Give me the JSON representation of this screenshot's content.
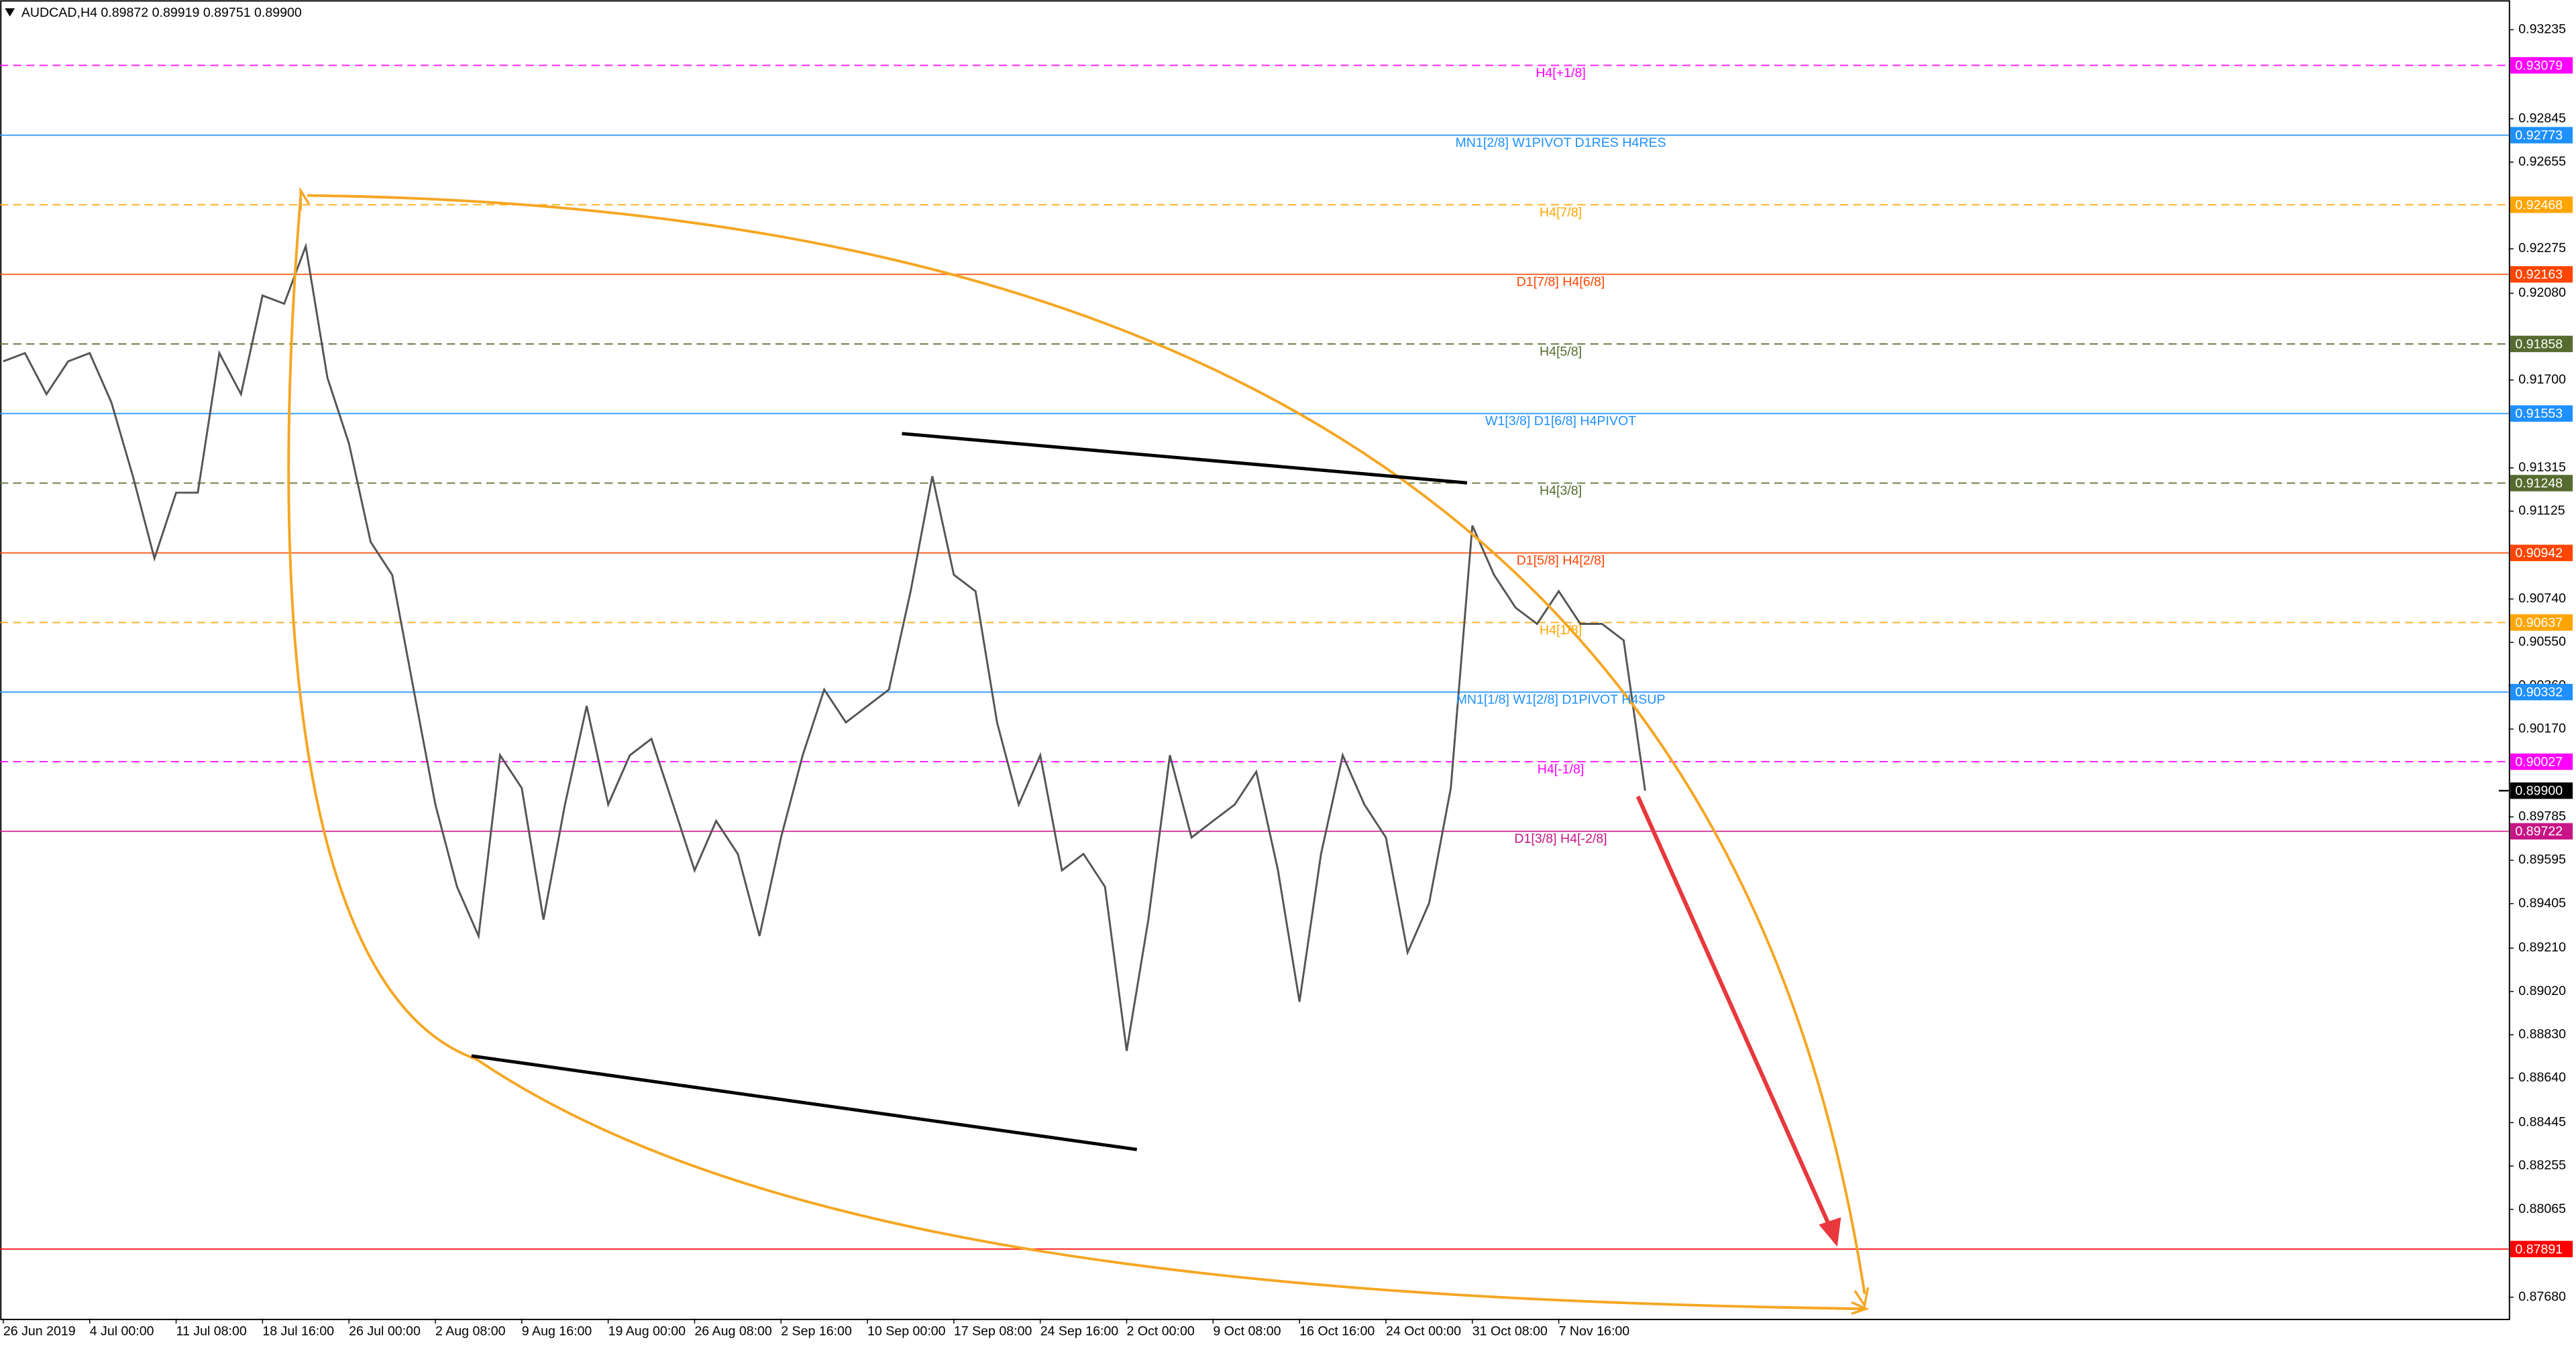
{
  "chart_data": {
    "type": "line",
    "title": "AUDCAD,H4  0.89872 0.89919 0.89751 0.89900",
    "color": "#555555",
    "grid": false,
    "ylim": [
      0.87586,
      0.93365
    ],
    "yticks": [
      0.93235,
      0.92845,
      0.92655,
      0.92275,
      {
        "value": 0.9208,
        "label": "0.92080"
      },
      {
        "value": 0.917,
        "label": "0.91700"
      },
      0.91315,
      0.91125,
      {
        "value": 0.9074,
        "label": "0.90740"
      },
      {
        "value": 0.9055,
        "label": "0.90550"
      },
      {
        "value": 0.9036,
        "label": "0.90360"
      },
      {
        "value": 0.9017,
        "label": "0.90170"
      },
      0.89785,
      0.89595,
      0.89405,
      {
        "value": 0.8921,
        "label": "0.89210"
      },
      {
        "value": 0.8902,
        "label": "0.89020"
      },
      {
        "value": 0.8883,
        "label": "0.88830"
      },
      {
        "value": 0.8864,
        "label": "0.88640"
      },
      0.88445,
      0.88255,
      0.88065,
      {
        "value": 0.8768,
        "label": "0.87680"
      }
    ],
    "categories": [
      "26 Jun 2019",
      null,
      null,
      null,
      "4 Jul 00:00",
      null,
      null,
      null,
      "11 Jul 08:00",
      null,
      null,
      null,
      "18 Jul 16:00",
      null,
      null,
      null,
      "26 Jul 00:00",
      null,
      null,
      null,
      "2 Aug 08:00",
      null,
      null,
      null,
      "9 Aug 16:00",
      null,
      null,
      null,
      "19 Aug 00:00",
      null,
      null,
      null,
      "26 Aug 08:00",
      null,
      null,
      null,
      "2 Sep 16:00",
      null,
      null,
      null,
      "10 Sep 00:00",
      null,
      null,
      null,
      "17 Sep 08:00",
      null,
      null,
      null,
      "24 Sep 16:00",
      null,
      null,
      null,
      "2 Oct 00:00",
      null,
      null,
      null,
      "9 Oct 08:00",
      null,
      null,
      null,
      "16 Oct 16:00",
      null,
      null,
      null,
      "24 Oct 00:00",
      null,
      null,
      null,
      "31 Oct 08:00",
      null,
      null,
      null,
      "7 Nov 16:00",
      null,
      null,
      null,
      null
    ],
    "values": [
      0.91782,
      0.91818,
      0.91638,
      0.91782,
      0.91818,
      0.91602,
      0.91278,
      0.90918,
      0.91206,
      0.91206,
      0.91818,
      0.91638,
      0.9207,
      0.92034,
      0.92286,
      0.9171,
      0.91422,
      0.9099,
      0.90846,
      0.90343,
      0.89839,
      0.89479,
      0.89263,
      0.90055,
      0.89911,
      0.89335,
      0.89839,
      0.90271,
      0.89839,
      0.90055,
      0.90127,
      0.89839,
      0.89551,
      0.89767,
      0.89623,
      0.89263,
      0.89695,
      0.90055,
      0.90343,
      0.90199,
      0.90271,
      0.90343,
      0.90774,
      0.91278,
      0.90846,
      0.90774,
      0.90199,
      0.89839,
      0.90055,
      0.89551,
      0.89623,
      0.89479,
      0.8876,
      0.89335,
      0.90055,
      0.89695,
      0.89767,
      0.89839,
      0.89983,
      0.89551,
      0.88975,
      0.89623,
      0.90055,
      0.89839,
      0.89695,
      0.89191,
      0.89407,
      0.89911,
      0.91062,
      0.90846,
      0.90702,
      0.90631,
      0.90774,
      0.90631,
      0.90631,
      0.90559,
      0.899
    ],
    "levels": [
      {
        "label": "H4[+1/8]",
        "value": 0.93079,
        "color": "#ff00ff",
        "dashed": true
      },
      {
        "label": "MN1[2/8] W1PIVOT D1RES H4RES",
        "value": 0.92773,
        "color": "#1e90ff",
        "dashed": false
      },
      {
        "label": "H4[7/8]",
        "value": 0.92468,
        "color": "#ffa500",
        "dashed": true
      },
      {
        "label": "D1[7/8] H4[6/8]",
        "value": 0.92163,
        "color": "#ff4500",
        "dashed": false
      },
      {
        "label": "H4[5/8]",
        "value": 0.91858,
        "color": "#556b2f",
        "dashed": true
      },
      {
        "label": "W1[3/8] D1[6/8] H4PIVOT",
        "value": 0.91553,
        "color": "#1e90ff",
        "dashed": false
      },
      {
        "label": "H4[3/8]",
        "value": 0.91248,
        "color": "#556b2f",
        "dashed": true
      },
      {
        "label": "D1[5/8] H4[2/8]",
        "value": 0.90942,
        "color": "#ff4500",
        "dashed": false
      },
      {
        "label": "H4[1/8]",
        "value": 0.90637,
        "color": "#ffa500",
        "dashed": true
      },
      {
        "label": "MN1[1/8] W1[2/8] D1PIVOT H4SUP",
        "value": 0.90332,
        "color": "#1e90ff",
        "dashed": false
      },
      {
        "label": "H4[-1/8]",
        "value": 0.90027,
        "color": "#ff00ff",
        "dashed": true
      },
      {
        "label": "D1[3/8] H4[-2/8]",
        "value": 0.89722,
        "color": "#c71585",
        "dashed": false
      },
      {
        "value": 0.87891,
        "color": "#ff0000",
        "dashed": false
      }
    ],
    "last_price": {
      "value": 0.899,
      "label": "0.89900"
    }
  }
}
